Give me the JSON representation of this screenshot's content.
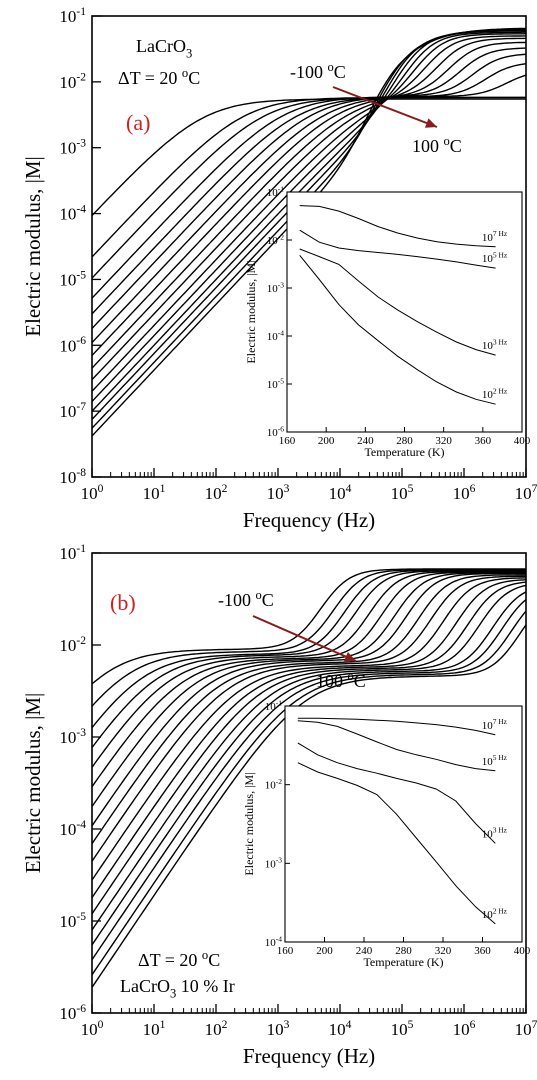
{
  "colors": {
    "curve": "#000000",
    "arrow": "#8b1a1a",
    "panel_label": "#cc2222"
  },
  "chart_data": [
    {
      "type": "line",
      "panel_label": "(a)",
      "title": "",
      "xlabel": "Frequency (Hz)",
      "ylabel": "Electric modulus, |M|",
      "xscale": "log",
      "yscale": "log",
      "xlim": [
        1,
        10000000
      ],
      "ylim": [
        1e-08,
        0.1
      ],
      "xtick_labels": [
        "10^0",
        "10^1",
        "10^2",
        "10^3",
        "10^4",
        "10^5",
        "10^6",
        "10^7"
      ],
      "ytick_labels": [
        "10^-8",
        "10^-7",
        "10^-6",
        "10^-5",
        "10^-4",
        "10^-3",
        "10^-2",
        "10^-1"
      ],
      "annotations": {
        "material": "LaCrO3",
        "step": "ΔT = 20 oC",
        "start_temp": "-100 oC",
        "end_temp": "100 oC"
      },
      "curves": [
        {
          "y_at_1Hz": 9.5e-05,
          "fc": 100,
          "low_plateau": 0.0055,
          "fr": 1000000000.0,
          "high_plateau": 0.0055
        },
        {
          "y_at_1Hz": 2.2e-05,
          "fc": 400,
          "low_plateau": 0.0058,
          "fr": 1000000000.0,
          "high_plateau": 0.0058
        },
        {
          "y_at_1Hz": 1.05e-05,
          "fc": 800,
          "low_plateau": 0.0058,
          "fr": 1000000000.0,
          "high_plateau": 0.0058
        },
        {
          "y_at_1Hz": 5.2e-06,
          "fc": 1600,
          "low_plateau": 0.006,
          "fr": 6000000.0,
          "high_plateau": 0.015
        },
        {
          "y_at_1Hz": 3e-06,
          "fc": 2800,
          "low_plateau": 0.006,
          "fr": 3000000.0,
          "high_plateau": 0.02
        },
        {
          "y_at_1Hz": 1.8e-06,
          "fc": 4500,
          "low_plateau": 0.0062,
          "fr": 2000000.0,
          "high_plateau": 0.027
        },
        {
          "y_at_1Hz": 1.1e-06,
          "fc": 7000,
          "low_plateau": 0.0063,
          "fr": 1300000.0,
          "high_plateau": 0.033
        },
        {
          "y_at_1Hz": 7e-07,
          "fc": 11000,
          "low_plateau": 0.0064,
          "fr": 900000.0,
          "high_plateau": 0.04
        },
        {
          "y_at_1Hz": 4.5e-07,
          "fc": 17000,
          "low_plateau": 0.0065,
          "fr": 600000.0,
          "high_plateau": 0.046
        },
        {
          "y_at_1Hz": 3e-07,
          "fc": 26000,
          "low_plateau": 0.0066,
          "fr": 400000.0,
          "high_plateau": 0.05
        },
        {
          "y_at_1Hz": 2e-07,
          "fc": 38000,
          "low_plateau": 0.0067,
          "fr": 280000.0,
          "high_plateau": 0.054
        },
        {
          "y_at_1Hz": 1.4e-07,
          "fc": 55000,
          "low_plateau": 0.0068,
          "fr": 200000.0,
          "high_plateau": 0.057
        },
        {
          "y_at_1Hz": 1e-07,
          "fc": 75000,
          "low_plateau": 0.0068,
          "fr": 140000.0,
          "high_plateau": 0.06
        },
        {
          "y_at_1Hz": 7.5e-08,
          "fc": 100000,
          "low_plateau": 0.0069,
          "fr": 100000.0,
          "high_plateau": 0.062
        },
        {
          "y_at_1Hz": 5.5e-08,
          "fc": 130000,
          "low_plateau": 0.007,
          "fr": 70000.0,
          "high_plateau": 0.064
        },
        {
          "y_at_1Hz": 4.2e-08,
          "fc": 170000,
          "low_plateau": 0.007,
          "fr": 50000.0,
          "high_plateau": 0.066
        }
      ],
      "inset": {
        "xlabel": "Temperature (K)",
        "ylabel": "Electric modulus, |M|",
        "xlim": [
          160,
          400
        ],
        "ylim": [
          1e-06,
          0.1
        ],
        "xticks": [
          160,
          200,
          240,
          280,
          320,
          360,
          400
        ],
        "ytick_labels": [
          "10^-6",
          "10^-5",
          "10^-4",
          "10^-3",
          "10^-2",
          "10^-1"
        ],
        "series": [
          {
            "name": "10^7 Hz",
            "x": [
              173,
              193,
              213,
              233,
              253,
              273,
              293,
              313,
              333,
              353,
              373
            ],
            "y": [
              0.052,
              0.05,
              0.04,
              0.028,
              0.019,
              0.014,
              0.011,
              0.0092,
              0.0082,
              0.0076,
              0.0072
            ]
          },
          {
            "name": "10^5 Hz",
            "x": [
              173,
              193,
              213,
              233,
              253,
              273,
              293,
              313,
              333,
              353,
              373
            ],
            "y": [
              0.016,
              0.009,
              0.0068,
              0.006,
              0.0055,
              0.005,
              0.0045,
              0.004,
              0.0035,
              0.003,
              0.0026
            ]
          },
          {
            "name": "10^3 Hz",
            "x": [
              173,
              193,
              213,
              233,
              253,
              273,
              293,
              313,
              333,
              353,
              373
            ],
            "y": [
              0.0065,
              0.0045,
              0.0031,
              0.0014,
              0.00065,
              0.00035,
              0.0002,
              0.00012,
              7.5e-05,
              5.2e-05,
              4e-05
            ]
          },
          {
            "name": "10^2 Hz",
            "x": [
              173,
              193,
              213,
              233,
              253,
              273,
              293,
              313,
              333,
              353,
              373
            ],
            "y": [
              0.0048,
              0.0015,
              0.00045,
              0.00017,
              8e-05,
              3.8e-05,
              2e-05,
              1.1e-05,
              6.8e-06,
              4.8e-06,
              3.8e-06
            ]
          }
        ]
      }
    },
    {
      "type": "line",
      "panel_label": "(b)",
      "title": "",
      "xlabel": "Frequency (Hz)",
      "ylabel": "Electric modulus, |M|",
      "xscale": "log",
      "yscale": "log",
      "xlim": [
        1,
        10000000
      ],
      "ylim": [
        1e-06,
        0.1
      ],
      "xtick_labels": [
        "10^0",
        "10^1",
        "10^2",
        "10^3",
        "10^4",
        "10^5",
        "10^6",
        "10^7"
      ],
      "ytick_labels": [
        "10^-6",
        "10^-5",
        "10^-4",
        "10^-3",
        "10^-2",
        "10^-1"
      ],
      "annotations": {
        "step": "ΔT = 20 oC",
        "material": "LaCrO3 10 % Ir",
        "start_temp": "-100 oC",
        "end_temp": "100 oC"
      },
      "curves": [
        {
          "y_at_1Hz": 0.0065,
          "fc": 2.5,
          "low_plateau": 0.009,
          "fr": 8000.0,
          "high_plateau": 0.067
        },
        {
          "y_at_1Hz": 0.0029,
          "fc": 6,
          "low_plateau": 0.0085,
          "fr": 13000.0,
          "high_plateau": 0.066
        },
        {
          "y_at_1Hz": 0.0015,
          "fc": 12,
          "low_plateau": 0.008,
          "fr": 20000.0,
          "high_plateau": 0.065
        },
        {
          "y_at_1Hz": 0.00085,
          "fc": 22,
          "low_plateau": 0.0078,
          "fr": 30000.0,
          "high_plateau": 0.064
        },
        {
          "y_at_1Hz": 0.0005,
          "fc": 40,
          "low_plateau": 0.0075,
          "fr": 50000.0,
          "high_plateau": 0.063
        },
        {
          "y_at_1Hz": 0.0003,
          "fc": 70,
          "low_plateau": 0.0072,
          "fr": 80000.0,
          "high_plateau": 0.062
        },
        {
          "y_at_1Hz": 0.00018,
          "fc": 120,
          "low_plateau": 0.007,
          "fr": 130000.0,
          "high_plateau": 0.061
        },
        {
          "y_at_1Hz": 0.00011,
          "fc": 200,
          "low_plateau": 0.0068,
          "fr": 200000.0,
          "high_plateau": 0.06
        },
        {
          "y_at_1Hz": 7e-05,
          "fc": 320,
          "low_plateau": 0.0065,
          "fr": 320000.0,
          "high_plateau": 0.058
        },
        {
          "y_at_1Hz": 4.5e-05,
          "fc": 500,
          "low_plateau": 0.0063,
          "fr": 500000.0,
          "high_plateau": 0.056
        },
        {
          "y_at_1Hz": 2.8e-05,
          "fc": 800,
          "low_plateau": 0.006,
          "fr": 800000.0,
          "high_plateau": 0.054
        },
        {
          "y_at_1Hz": 1.8e-05,
          "fc": 1300,
          "low_plateau": 0.0058,
          "fr": 1300000.0,
          "high_plateau": 0.052
        },
        {
          "y_at_1Hz": 1.2e-05,
          "fc": 2000,
          "low_plateau": 0.0056,
          "fr": 2000000.0,
          "high_plateau": 0.05
        },
        {
          "y_at_1Hz": 8e-06,
          "fc": 3200,
          "low_plateau": 0.0054,
          "fr": 3000000.0,
          "high_plateau": 0.048
        },
        {
          "y_at_1Hz": 5.5e-06,
          "fc": 5000,
          "low_plateau": 0.0052,
          "fr": 5000000.0,
          "high_plateau": 0.046
        },
        {
          "y_at_1Hz": 3.8e-06,
          "fc": 8000,
          "low_plateau": 0.005,
          "fr": 7000000.0,
          "high_plateau": 0.044
        },
        {
          "y_at_1Hz": 2.6e-06,
          "fc": 12000,
          "low_plateau": 0.0048,
          "fr": 10000000.0,
          "high_plateau": 0.042
        },
        {
          "y_at_1Hz": 1.9e-06,
          "fc": 18000,
          "low_plateau": 0.0046,
          "fr": 14000000.0,
          "high_plateau": 0.04
        }
      ],
      "inset": {
        "xlabel": "Temperature (K)",
        "ylabel": "Electric modulus, |M|",
        "xlim": [
          160,
          400
        ],
        "ylim": [
          0.0001,
          0.1
        ],
        "xticks": [
          160,
          200,
          240,
          280,
          320,
          360,
          400
        ],
        "ytick_labels": [
          "10^-4",
          "10^-3",
          "10^-2",
          "10^-1"
        ],
        "series": [
          {
            "name": "10^7 Hz",
            "x": [
              173,
              193,
              213,
              233,
              253,
              273,
              293,
              313,
              333,
              353,
              373
            ],
            "y": [
              0.07,
              0.07,
              0.069,
              0.068,
              0.066,
              0.064,
              0.061,
              0.058,
              0.054,
              0.049,
              0.043
            ]
          },
          {
            "name": "10^5 Hz",
            "x": [
              173,
              193,
              213,
              233,
              253,
              273,
              293,
              313,
              333,
              353,
              373
            ],
            "y": [
              0.065,
              0.062,
              0.055,
              0.044,
              0.035,
              0.028,
              0.024,
              0.021,
              0.018,
              0.016,
              0.015
            ]
          },
          {
            "name": "10^3 Hz",
            "x": [
              173,
              193,
              213,
              233,
              253,
              273,
              293,
              313,
              333,
              353,
              373
            ],
            "y": [
              0.034,
              0.024,
              0.019,
              0.016,
              0.014,
              0.012,
              0.0105,
              0.0088,
              0.0062,
              0.0032,
              0.0018
            ]
          },
          {
            "name": "10^2 Hz",
            "x": [
              173,
              193,
              213,
              233,
              253,
              273,
              293,
              313,
              333,
              353,
              373
            ],
            "y": [
              0.019,
              0.0145,
              0.012,
              0.0098,
              0.0075,
              0.0042,
              0.0021,
              0.00105,
              0.00052,
              0.00028,
              0.00017
            ]
          }
        ]
      }
    }
  ]
}
